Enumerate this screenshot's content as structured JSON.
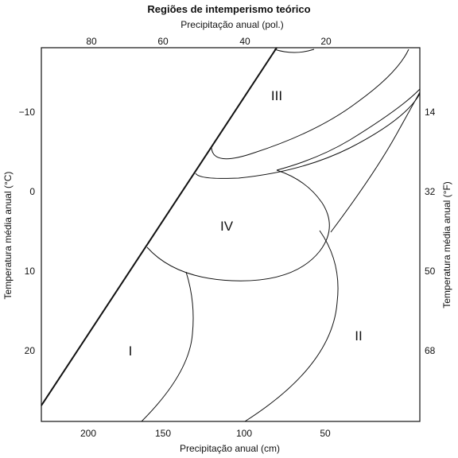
{
  "title": "Regiões de intemperismo teórico",
  "top_axis": {
    "label": "Precipitação anual (pol.)",
    "ticks": [
      "80",
      "60",
      "40",
      "20"
    ]
  },
  "bottom_axis": {
    "label": "Precipitação anual (cm)",
    "ticks": [
      "200",
      "150",
      "100",
      "50"
    ]
  },
  "left_axis": {
    "label": "Temperatura média anual (°C)",
    "ticks": [
      "−10",
      "0",
      "10",
      "20"
    ]
  },
  "right_axis": {
    "label": "Temperatura média anual (°F)",
    "ticks": [
      "14",
      "32",
      "50",
      "68"
    ]
  },
  "regions": [
    "I",
    "II",
    "III",
    "IV"
  ]
}
